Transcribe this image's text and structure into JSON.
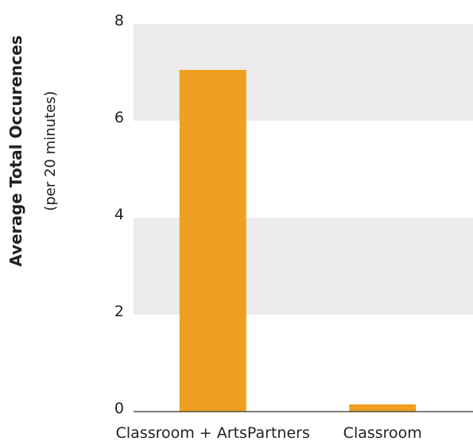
{
  "chart_data": {
    "type": "bar",
    "categories": [
      "Classroom + ArtsPartners",
      "Classroom"
    ],
    "values": [
      7.05,
      0.15
    ],
    "ylabel": "Average Total Occurences",
    "ylabel_sub": "(per 20 minutes)",
    "ylim": [
      0,
      8
    ],
    "yticks": [
      0,
      2,
      4,
      6,
      8
    ],
    "grid": "alternating horizontal bands",
    "legend": "none",
    "colors": {
      "bar": "#F0A020",
      "band": "#EBEBEB",
      "axis": "#333333"
    }
  }
}
